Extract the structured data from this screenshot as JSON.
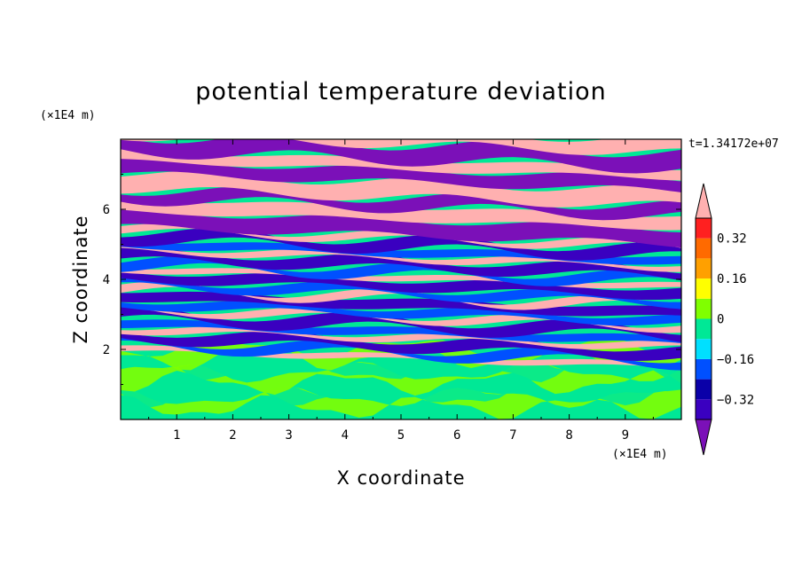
{
  "chart_data": {
    "type": "heatmap",
    "title": "potential temperature deviation",
    "xlabel": "X coordinate",
    "ylabel": "Z coordinate",
    "x_unit": "(×1E4 m)",
    "y_unit": "(×1E4 m)",
    "time_label": "t=1.34172e+07",
    "xlim": [
      0,
      10
    ],
    "ylim": [
      0,
      8
    ],
    "x_ticks": [
      "1",
      "2",
      "3",
      "4",
      "5",
      "6",
      "7",
      "8",
      "9"
    ],
    "y_ticks": [
      "2",
      "4",
      "6"
    ],
    "colorbar": {
      "levels": [
        -0.4,
        -0.32,
        -0.24,
        -0.16,
        -0.08,
        0,
        0.08,
        0.16,
        0.24,
        0.32,
        0.4
      ],
      "labels": [
        "0.32",
        "0.16",
        "0",
        "−0.16",
        "−0.32"
      ],
      "label_values": [
        0.32,
        0.16,
        0,
        -0.16,
        -0.32
      ],
      "colors": [
        "#7b10b8",
        "#3a00c0",
        "#0a00a8",
        "#0050ff",
        "#00e0ff",
        "#00e896",
        "#80ff00",
        "#ffff00",
        "#ffa000",
        "#ff6a00",
        "#ff2020",
        "#ffb0b0"
      ],
      "extend": "both"
    },
    "layers": [
      {
        "z_range": [
          0,
          2
        ],
        "dominant": [
          "#00e896",
          "#80ff00"
        ],
        "description": "mixed layer"
      },
      {
        "z_range": [
          2,
          5.5
        ],
        "dominant": [
          "#ffb0b0",
          "#7b10b8",
          "#ff2020",
          "#0050ff",
          "#00e896"
        ],
        "description": "banded"
      },
      {
        "z_range": [
          5.5,
          8
        ],
        "dominant": [
          "#ffb0b0",
          "#7b10b8"
        ],
        "description": "wide bands"
      }
    ]
  }
}
